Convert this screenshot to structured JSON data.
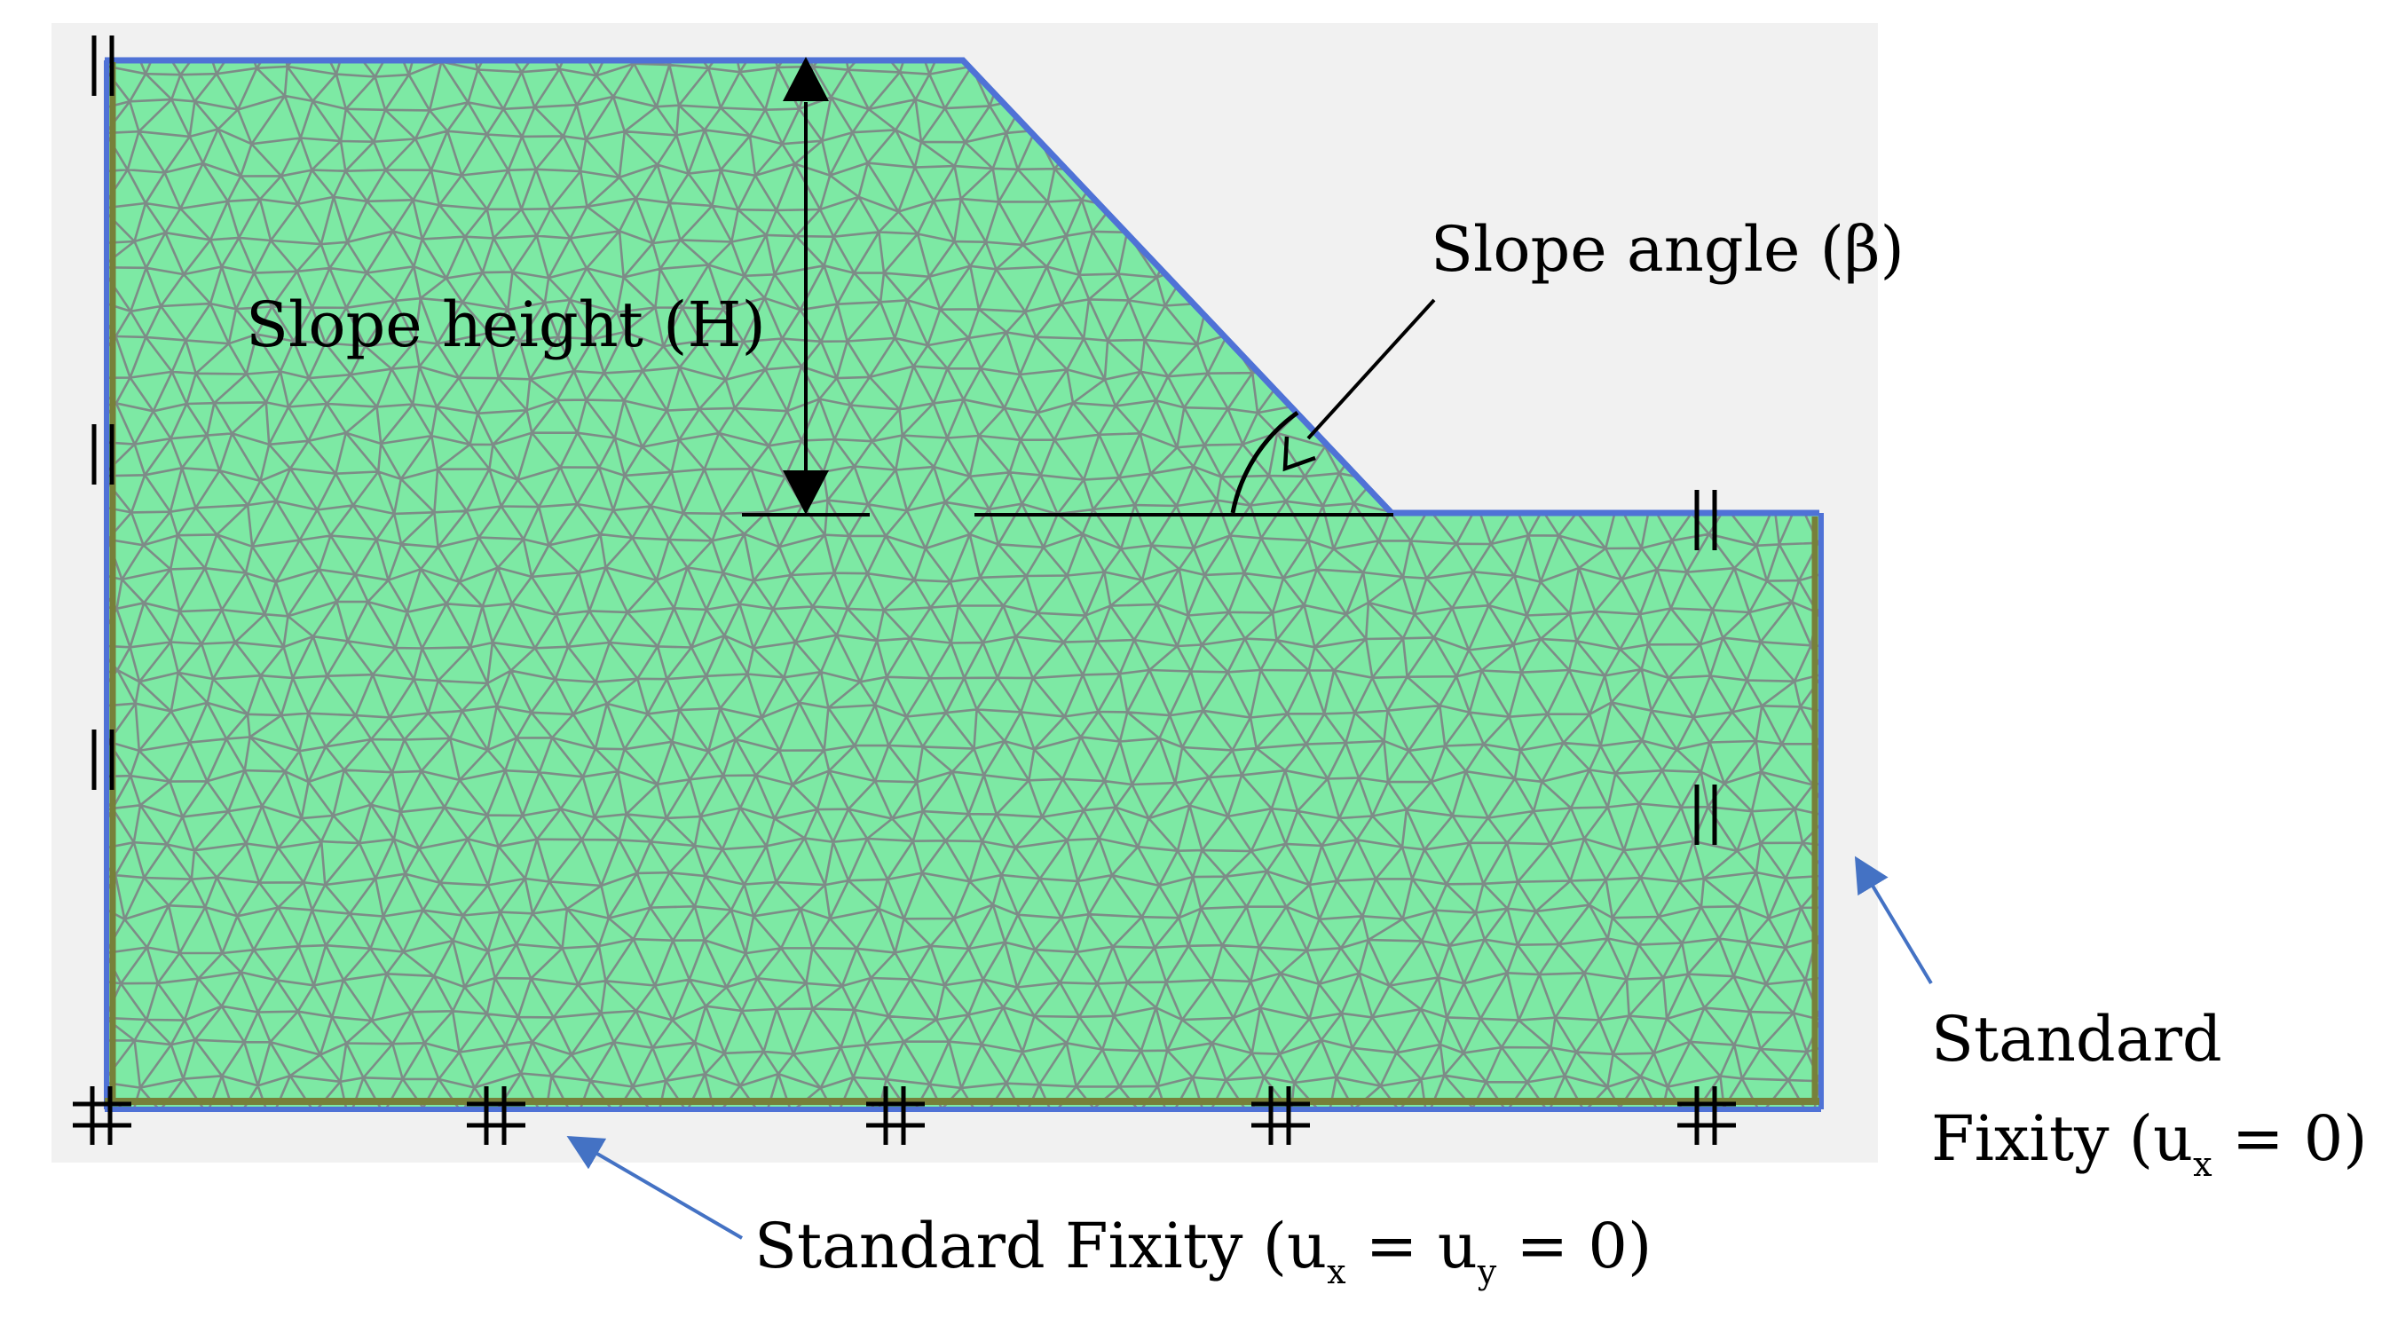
{
  "labels": {
    "slope_height": "Slope height (H)",
    "slope_angle": "Slope angle (β)",
    "fixity_right_line1": "Standard",
    "fixity_right_line2_pre": "Fixity (u",
    "fixity_right_line2_sub": "x",
    "fixity_right_line2_post": " = 0)",
    "fixity_bottom_pre": "Standard Fixity (u",
    "fixity_bottom_sub1": "x",
    "fixity_bottom_mid": " = u",
    "fixity_bottom_sub2": "y",
    "fixity_bottom_post": " = 0)"
  },
  "colors": {
    "background_panel": "#f1f1f1",
    "soil_fill": "#7de9a4",
    "mesh_line": "#7d7480",
    "boundary_blue": "#4f72d6",
    "boundary_olive": "#77803a",
    "annotation_arrow": "#4472c4",
    "dimension_black": "#000000"
  },
  "icons": {
    "roller_support": "double-vertical-bar-icon",
    "fixed_support": "hash-icon"
  }
}
